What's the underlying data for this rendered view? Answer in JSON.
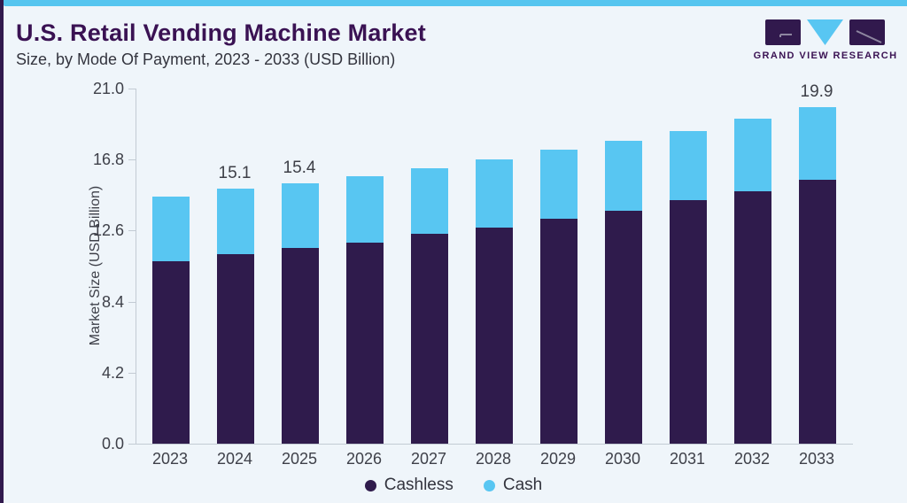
{
  "page": {
    "title": "U.S. Retail Vending Machine Market",
    "subtitle": "Size, by Mode Of Payment, 2023 - 2033 (USD Billion)",
    "brand": {
      "name": "GRAND VIEW RESEARCH"
    },
    "colors": {
      "accent_purple": "#2f1b4c",
      "accent_blue": "#58c6f2",
      "top_strip_blue": "#56c5ef",
      "left_strip_purple": "#31194d",
      "title_purple": "#3a1253",
      "text_dark": "#3e4049",
      "axis_line": "#c3cbd4",
      "background": "#eff5fa"
    }
  },
  "chart_data": {
    "type": "bar",
    "stacked": true,
    "title": "U.S. Retail Vending Machine Market",
    "subtitle": "Size, by Mode Of Payment, 2023 - 2033 (USD Billion)",
    "categories": [
      "2023",
      "2024",
      "2025",
      "2026",
      "2027",
      "2028",
      "2029",
      "2030",
      "2031",
      "2032",
      "2033"
    ],
    "series": [
      {
        "name": "Cashless",
        "color": "#2f1b4c",
        "values": [
          10.8,
          11.2,
          11.6,
          11.9,
          12.4,
          12.8,
          13.3,
          13.8,
          14.4,
          14.9,
          15.6
        ]
      },
      {
        "name": "Cash",
        "color": "#58c6f2",
        "values": [
          3.8,
          3.9,
          3.8,
          3.9,
          3.9,
          4.0,
          4.1,
          4.1,
          4.1,
          4.3,
          4.3
        ]
      }
    ],
    "totals": [
      14.6,
      15.1,
      15.4,
      15.8,
      16.3,
      16.8,
      17.4,
      17.9,
      18.5,
      19.2,
      19.9
    ],
    "bar_labels": [
      "",
      "15.1",
      "15.4",
      "",
      "",
      "",
      "",
      "",
      "",
      "",
      "19.9"
    ],
    "xlabel": "",
    "ylabel": "Market Size (USD Billion)",
    "yticks": [
      "21.0",
      "16.8",
      "12.6",
      "8.4",
      "4.2",
      "0.0"
    ],
    "ylim": [
      0,
      21
    ],
    "grid": false,
    "legend_position": "bottom"
  }
}
